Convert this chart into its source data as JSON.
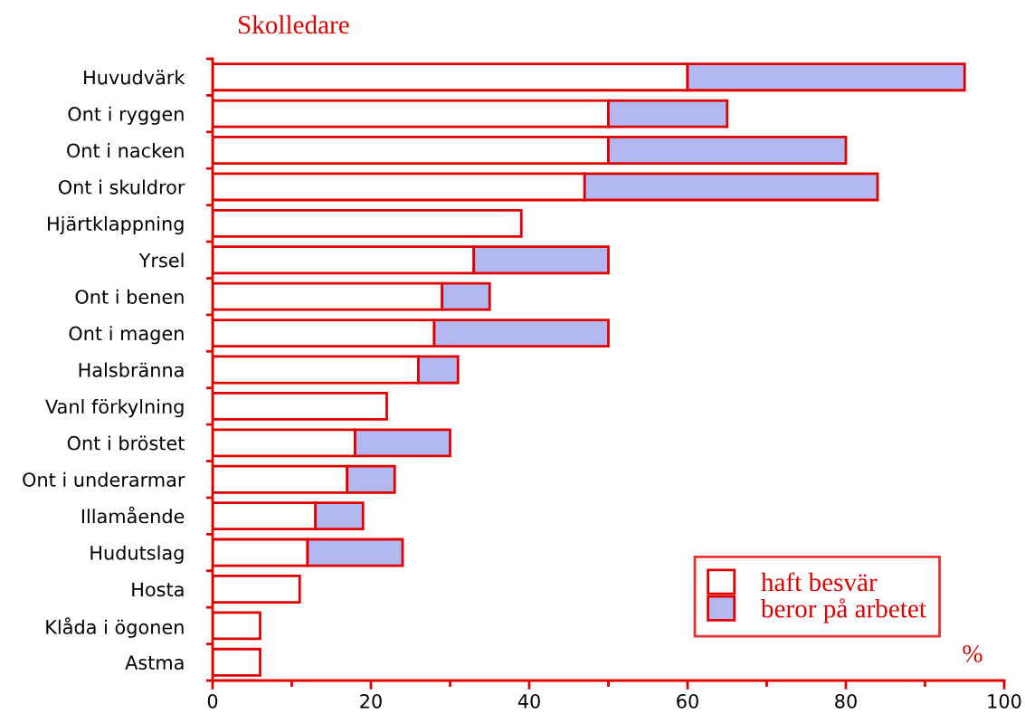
{
  "chart_data": {
    "type": "bar",
    "orientation": "horizontal",
    "stacked": true,
    "title": "Skolledare",
    "xlabel": "%",
    "categories": [
      "Huvudvärk",
      "Ont i ryggen",
      "Ont i nacken",
      "Ont i skuldror",
      "Hjärtklappning",
      "Yrsel",
      "Ont i benen",
      "Ont i magen",
      "Halsbränna",
      "Vanl förkylning",
      "Ont i bröstet",
      "Ont i underarmar",
      "Illamående",
      "Hudutslag",
      "Hosta",
      "Klåda i ögonen",
      "Astma"
    ],
    "series": [
      {
        "name": "haft besvär",
        "color": "#ffffff",
        "values": [
          60,
          50,
          50,
          47,
          39,
          33,
          29,
          28,
          26,
          22,
          18,
          17,
          13,
          12,
          11,
          6,
          6
        ]
      },
      {
        "name": "beror på arbetet",
        "color": "#b4b8f0",
        "values": [
          35,
          15,
          30,
          37,
          null,
          17,
          6,
          22,
          5,
          null,
          12,
          6,
          6,
          12,
          null,
          null,
          null
        ]
      }
    ],
    "xlim": [
      0,
      100
    ],
    "xticks": [
      0,
      {
        "value": 10,
        "label": null
      },
      20,
      {
        "value": 30,
        "label": null
      },
      40,
      {
        "value": 50,
        "label": null
      },
      60,
      {
        "value": 70,
        "label": null
      },
      80,
      {
        "value": 90,
        "label": null
      },
      100
    ],
    "grid": false,
    "legend": "bottom right"
  }
}
